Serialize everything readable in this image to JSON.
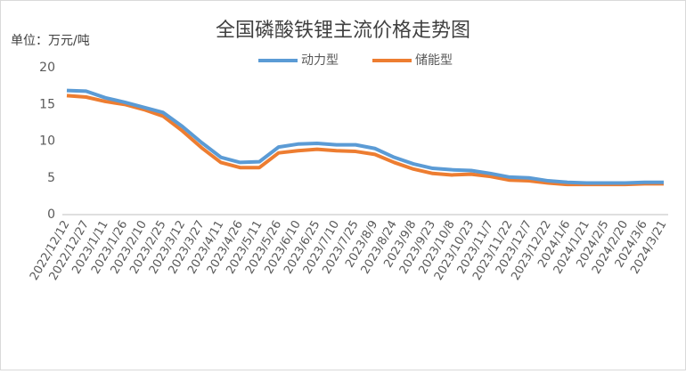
{
  "chart_data": {
    "type": "line",
    "title": "全国磷酸铁锂主流价格走势图",
    "y_label": "单位：万元/吨",
    "categories": [
      "2022/12/12",
      "2022/12/27",
      "2023/1/11",
      "2023/1/26",
      "2023/2/10",
      "2023/2/25",
      "2023/3/12",
      "2023/3/27",
      "2023/4/11",
      "2023/4/26",
      "2023/5/11",
      "2023/5/26",
      "2023/6/10",
      "2023/6/25",
      "2023/7/10",
      "2023/7/25",
      "2023/8/9",
      "2023/8/24",
      "2023/9/8",
      "2023/9/23",
      "2023/10/8",
      "2023/10/23",
      "2023/11/7",
      "2023/11/22",
      "2023/12/7",
      "2023/12/22",
      "2024/1/6",
      "2024/1/21",
      "2024/2/5",
      "2024/2/20",
      "2024/3/6",
      "2024/3/21"
    ],
    "series": [
      {
        "name": "动力型",
        "color": "#5b9bd5",
        "values": [
          16.9,
          16.8,
          15.9,
          15.3,
          14.6,
          13.9,
          12.0,
          9.8,
          7.8,
          7.1,
          7.2,
          9.2,
          9.6,
          9.7,
          9.5,
          9.5,
          9.0,
          7.8,
          6.9,
          6.3,
          6.1,
          6.0,
          5.6,
          5.1,
          5.0,
          4.6,
          4.4,
          4.3,
          4.3,
          4.3,
          4.4,
          4.4
        ]
      },
      {
        "name": "储能型",
        "color": "#ed7d31",
        "values": [
          16.2,
          16.0,
          15.4,
          15.0,
          14.3,
          13.4,
          11.4,
          9.1,
          7.1,
          6.4,
          6.4,
          8.4,
          8.7,
          8.9,
          8.7,
          8.6,
          8.2,
          7.1,
          6.2,
          5.6,
          5.4,
          5.5,
          5.2,
          4.7,
          4.6,
          4.3,
          4.1,
          4.1,
          4.1,
          4.1,
          4.2,
          4.2
        ]
      }
    ],
    "ylim": [
      0,
      20
    ],
    "yticks": [
      0,
      5,
      10,
      15,
      20
    ],
    "grid": false,
    "legend": "top"
  }
}
